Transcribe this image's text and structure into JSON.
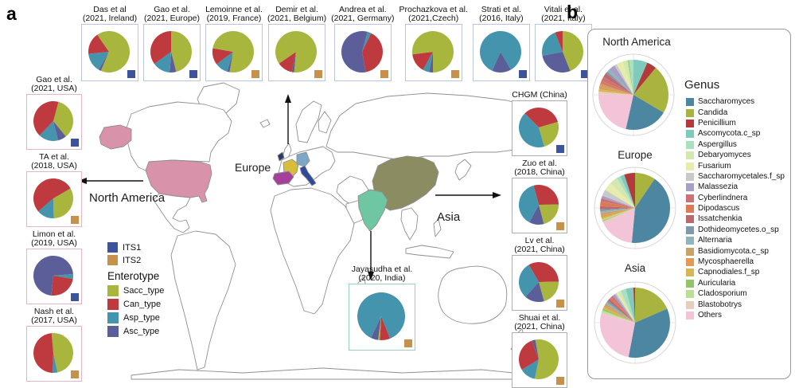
{
  "panels": {
    "a": "a",
    "b": "b"
  },
  "map": {
    "labels": {
      "europe": "Europe",
      "north_america": "North America",
      "asia": "Asia"
    },
    "outline_color": "#8f8f8f",
    "country_colors": {
      "usa": "#d893ab",
      "alaska": "#d893ab",
      "ireland": "#2b3a66",
      "france": "#d8bd3a",
      "germany": "#7da7c4",
      "spain": "#a4409c",
      "italy": "#2e4a9a",
      "china": "#8c8c62",
      "india": "#6ec6a3"
    }
  },
  "its_legend": {
    "its1_label": "ITS1",
    "its1_color": "#3d549c",
    "its2_label": "ITS2",
    "its2_color": "#c8914b"
  },
  "enterotype_legend": {
    "title": "Enterotype",
    "items": [
      {
        "label": "Sacc_type",
        "color": "#a9b63e"
      },
      {
        "label": "Can_type",
        "color": "#bf3a3e"
      },
      {
        "label": "Asp_type",
        "color": "#4494ae"
      },
      {
        "label": "Asc_type",
        "color": "#5b5e99"
      }
    ]
  },
  "box_border_colors": {
    "top": "#b9c6de",
    "left": "#e2b6c5",
    "right": "#aeaeae",
    "india": "#98d0bd"
  },
  "chart_data": {
    "type": "pie",
    "enterotype_colors": {
      "Sacc_type": "#a9b63e",
      "Can_type": "#bf3a3e",
      "Asp_type": "#4494ae",
      "Asc_type": "#5b5e99"
    },
    "study_pies": [
      {
        "group": "top",
        "line1": "Das et al",
        "line2": "(2021, Ireland)",
        "marker": "ITS1",
        "rot": 203,
        "slices": [
          {
            "type": "Asc_type",
            "frac": 0.02
          },
          {
            "type": "Asp_type",
            "frac": 0.15
          },
          {
            "type": "Can_type",
            "frac": 0.17
          },
          {
            "type": "Sacc_type",
            "frac": 0.66
          }
        ]
      },
      {
        "group": "top",
        "line1": "Gao et al.",
        "line2": "(2021, Europe)",
        "marker": "ITS1",
        "rot": 0,
        "slices": [
          {
            "type": "Sacc_type",
            "frac": 0.46
          },
          {
            "type": "Asc_type",
            "frac": 0.05
          },
          {
            "type": "Asp_type",
            "frac": 0.14
          },
          {
            "type": "Can_type",
            "frac": 0.35
          }
        ]
      },
      {
        "group": "top",
        "line1": "Lemoinne et al.",
        "line2": "(2019, France)",
        "marker": "ITS2",
        "rot": 190,
        "slices": [
          {
            "type": "Asc_type",
            "frac": 0.02
          },
          {
            "type": "Asp_type",
            "frac": 0.1
          },
          {
            "type": "Can_type",
            "frac": 0.13
          },
          {
            "type": "Sacc_type",
            "frac": 0.75
          }
        ]
      },
      {
        "group": "top",
        "line1": "Demir et al.",
        "line2": "(2021, Belgium)",
        "marker": "ITS2",
        "rot": 185,
        "slices": [
          {
            "type": "Asc_type",
            "frac": 0.02
          },
          {
            "type": "Can_type",
            "frac": 0.12
          },
          {
            "type": "Sacc_type",
            "frac": 0.86
          }
        ]
      },
      {
        "group": "top",
        "line1": "Andrea et al.",
        "line2": "(2021, Germany)",
        "marker": "ITS2",
        "rot": 15,
        "slices": [
          {
            "type": "Asp_type",
            "frac": 0.03
          },
          {
            "type": "Can_type",
            "frac": 0.4
          },
          {
            "type": "Asc_type",
            "frac": 0.57
          }
        ]
      },
      {
        "group": "top",
        "line1": "Prochazkova et al.",
        "line2": "(2021,Czech)",
        "marker": "ITS2",
        "rot": 180,
        "slices": [
          {
            "type": "Asc_type",
            "frac": 0.03
          },
          {
            "type": "Asp_type",
            "frac": 0.05
          },
          {
            "type": "Can_type",
            "frac": 0.15
          },
          {
            "type": "Sacc_type",
            "frac": 0.77
          }
        ]
      },
      {
        "group": "top",
        "line1": "Strati et al.",
        "line2": "(2016, Italy)",
        "marker": "ITS1",
        "rot": 150,
        "slices": [
          {
            "type": "Asc_type",
            "frac": 0.15
          },
          {
            "type": "Asp_type",
            "frac": 0.85
          }
        ]
      },
      {
        "group": "top",
        "line1": "Vitali et al.",
        "line2": "(2021, Italy)",
        "marker": "ITS1",
        "rot": 0,
        "slices": [
          {
            "type": "Sacc_type",
            "frac": 0.44
          },
          {
            "type": "Asc_type",
            "frac": 0.28
          },
          {
            "type": "Asp_type",
            "frac": 0.22
          },
          {
            "type": "Can_type",
            "frac": 0.06
          }
        ]
      },
      {
        "group": "left",
        "line1": "Gao et al.",
        "line2": "(2021, USA)",
        "marker": "ITS1",
        "rot": 15,
        "slices": [
          {
            "type": "Sacc_type",
            "frac": 0.35
          },
          {
            "type": "Asc_type",
            "frac": 0.07
          },
          {
            "type": "Asp_type",
            "frac": 0.16
          },
          {
            "type": "Can_type",
            "frac": 0.42
          }
        ]
      },
      {
        "group": "left",
        "line1": "TA et al.",
        "line2": "(2018, USA)",
        "marker": "ITS2",
        "rot": 60,
        "slices": [
          {
            "type": "Sacc_type",
            "frac": 0.33
          },
          {
            "type": "Asp_type",
            "frac": 0.14
          },
          {
            "type": "Can_type",
            "frac": 0.53
          }
        ]
      },
      {
        "group": "left",
        "line1": "Limon et al.",
        "line2": "(2019, USA)",
        "marker": "ITS1",
        "rot": 85,
        "slices": [
          {
            "type": "Asp_type",
            "frac": 0.04
          },
          {
            "type": "Can_type",
            "frac": 0.24
          },
          {
            "type": "Asc_type",
            "frac": 0.72
          }
        ]
      },
      {
        "group": "left",
        "line1": "Nash et al.",
        "line2": "(2017, USA)",
        "marker": "ITS2",
        "rot": 355,
        "slices": [
          {
            "type": "Sacc_type",
            "frac": 0.48
          },
          {
            "type": "Asp_type",
            "frac": 0.04
          },
          {
            "type": "Can_type",
            "frac": 0.48
          }
        ]
      },
      {
        "group": "right",
        "line1": "CHGM (China)",
        "line2": "",
        "marker": "ITS1",
        "rot": 315,
        "slices": [
          {
            "type": "Can_type",
            "frac": 0.33
          },
          {
            "type": "Sacc_type",
            "frac": 0.25
          },
          {
            "type": "Asp_type",
            "frac": 0.42
          }
        ]
      },
      {
        "group": "right",
        "line1": "Zuo et al.",
        "line2": "(2018, China)",
        "marker": "ITS2",
        "rot": 345,
        "slices": [
          {
            "type": "Can_type",
            "frac": 0.29
          },
          {
            "type": "Sacc_type",
            "frac": 0.21
          },
          {
            "type": "Asc_type",
            "frac": 0.12
          },
          {
            "type": "Asp_type",
            "frac": 0.38
          }
        ]
      },
      {
        "group": "right",
        "line1": "Lv et al.",
        "line2": "(2021, China)",
        "marker": "ITS2",
        "rot": 330,
        "slices": [
          {
            "type": "Can_type",
            "frac": 0.33
          },
          {
            "type": "Sacc_type",
            "frac": 0.21
          },
          {
            "type": "Asc_type",
            "frac": 0.16
          },
          {
            "type": "Asp_type",
            "frac": 0.3
          }
        ]
      },
      {
        "group": "right",
        "line1": "Shuai et al.",
        "line2": "(2021, China)",
        "marker": "ITS2",
        "rot": 350,
        "slices": [
          {
            "type": "Sacc_type",
            "frac": 0.56
          },
          {
            "type": "Asp_type",
            "frac": 0.13
          },
          {
            "type": "Can_type",
            "frac": 0.28
          },
          {
            "type": "Asc_type",
            "frac": 0.03
          }
        ]
      },
      {
        "group": "india",
        "line1": "Jayasudha et al.",
        "line2": "(2020, India)",
        "marker": "ITS2",
        "rot": 158,
        "slices": [
          {
            "type": "Can_type",
            "frac": 0.07
          },
          {
            "type": "Sacc_type",
            "frac": 0.012
          },
          {
            "type": "Asc_type",
            "frac": 0.05
          },
          {
            "type": "Asp_type",
            "frac": 0.868
          }
        ]
      }
    ],
    "genus_legend": {
      "title": "Genus",
      "items": [
        {
          "name": "Saccharomyces",
          "color": "#4d86a0"
        },
        {
          "name": "Candida",
          "color": "#a9b440"
        },
        {
          "name": "Penicillium",
          "color": "#b23a3d"
        },
        {
          "name": "Ascomycota.c_sp",
          "color": "#7fcabb"
        },
        {
          "name": "Aspergillus",
          "color": "#abdfc2"
        },
        {
          "name": "Debaryomyces",
          "color": "#d3e8b0"
        },
        {
          "name": "Fusarium",
          "color": "#e7ecad"
        },
        {
          "name": "Saccharomycetales.f_sp",
          "color": "#c9c9c9"
        },
        {
          "name": "Malassezia",
          "color": "#a79fc6"
        },
        {
          "name": "Cyberlindnera",
          "color": "#cb7277"
        },
        {
          "name": "Dipodascus",
          "color": "#dc7a57"
        },
        {
          "name": "Issatchenkia",
          "color": "#b96a6e"
        },
        {
          "name": "Dothideomycetes.o_sp",
          "color": "#7e99ab"
        },
        {
          "name": "Alternaria",
          "color": "#8fb4b9"
        },
        {
          "name": "Basidiomycota.c_sp",
          "color": "#c5a36b"
        },
        {
          "name": "Mycosphaerella",
          "color": "#e29a54"
        },
        {
          "name": "Capnodiales.f_sp",
          "color": "#d6b753"
        },
        {
          "name": "Auricularia",
          "color": "#94c368"
        },
        {
          "name": "Cladosporium",
          "color": "#badf94"
        },
        {
          "name": "Blastobotrys",
          "color": "#e7cdbb"
        },
        {
          "name": "Others",
          "color": "#f3c3d8"
        }
      ]
    },
    "region_pies": [
      {
        "title": "North America",
        "slices": [
          {
            "genus": "Ascomycota.c_sp",
            "frac": 0.065
          },
          {
            "genus": "Penicillium",
            "frac": 0.045
          },
          {
            "genus": "Candida",
            "frac": 0.225
          },
          {
            "genus": "Saccharomyces",
            "frac": 0.2
          },
          {
            "genus": "Others",
            "frac": 0.218
          },
          {
            "genus": "Blastobotrys",
            "frac": 0.012
          },
          {
            "genus": "Capnodiales.f_sp",
            "frac": 0.012
          },
          {
            "genus": "Mycosphaerella",
            "frac": 0.012
          },
          {
            "genus": "Basidiomycota.c_sp",
            "frac": 0.012
          },
          {
            "genus": "Dipodascus",
            "frac": 0.015
          },
          {
            "genus": "Cyberlindnera",
            "frac": 0.02
          },
          {
            "genus": "Issatchenkia",
            "frac": 0.02
          },
          {
            "genus": "Dothideomycetes.o_sp",
            "frac": 0.01
          },
          {
            "genus": "Alternaria",
            "frac": 0.012
          },
          {
            "genus": "Malassezia",
            "frac": 0.03
          },
          {
            "genus": "Saccharomycetales.f_sp",
            "frac": 0.012
          },
          {
            "genus": "Fusarium",
            "frac": 0.03
          },
          {
            "genus": "Debaryomyces",
            "frac": 0.02
          },
          {
            "genus": "Cladosporium",
            "frac": 0.005
          },
          {
            "genus": "Auricularia",
            "frac": 0.005
          },
          {
            "genus": "Aspergillus",
            "frac": 0.02
          }
        ]
      },
      {
        "title": "Europe",
        "slices": [
          {
            "genus": "Candida",
            "frac": 0.095
          },
          {
            "genus": "Saccharomyces",
            "frac": 0.42
          },
          {
            "genus": "Others",
            "frac": 0.16
          },
          {
            "genus": "Blastobotrys",
            "frac": 0.012
          },
          {
            "genus": "Auricularia",
            "frac": 0.004
          },
          {
            "genus": "Cladosporium",
            "frac": 0.006
          },
          {
            "genus": "Capnodiales.f_sp",
            "frac": 0.008
          },
          {
            "genus": "Mycosphaerella",
            "frac": 0.01
          },
          {
            "genus": "Basidiomycota.c_sp",
            "frac": 0.012
          },
          {
            "genus": "Alternaria",
            "frac": 0.008
          },
          {
            "genus": "Dothideomycetes.o_sp",
            "frac": 0.008
          },
          {
            "genus": "Issatchenkia",
            "frac": 0.015
          },
          {
            "genus": "Dipodascus",
            "frac": 0.022
          },
          {
            "genus": "Cyberlindnera",
            "frac": 0.015
          },
          {
            "genus": "Malassezia",
            "frac": 0.012
          },
          {
            "genus": "Saccharomycetales.f_sp",
            "frac": 0.03
          },
          {
            "genus": "Fusarium",
            "frac": 0.04
          },
          {
            "genus": "Debaryomyces",
            "frac": 0.035
          },
          {
            "genus": "Aspergillus",
            "frac": 0.018
          },
          {
            "genus": "Ascomycota.c_sp",
            "frac": 0.02
          },
          {
            "genus": "Penicillium",
            "frac": 0.05
          }
        ]
      },
      {
        "title": "Asia",
        "slices": [
          {
            "genus": "Candida",
            "frac": 0.185
          },
          {
            "genus": "Saccharomyces",
            "frac": 0.345
          },
          {
            "genus": "Others",
            "frac": 0.26
          },
          {
            "genus": "Blastobotrys",
            "frac": 0.008
          },
          {
            "genus": "Cladosporium",
            "frac": 0.01
          },
          {
            "genus": "Auricularia",
            "frac": 0.008
          },
          {
            "genus": "Capnodiales.f_sp",
            "frac": 0.008
          },
          {
            "genus": "Mycosphaerella",
            "frac": 0.008
          },
          {
            "genus": "Basidiomycota.c_sp",
            "frac": 0.01
          },
          {
            "genus": "Alternaria",
            "frac": 0.008
          },
          {
            "genus": "Dothideomycetes.o_sp",
            "frac": 0.008
          },
          {
            "genus": "Issatchenkia",
            "frac": 0.012
          },
          {
            "genus": "Dipodascus",
            "frac": 0.01
          },
          {
            "genus": "Cyberlindnera",
            "frac": 0.01
          },
          {
            "genus": "Malassezia",
            "frac": 0.012
          },
          {
            "genus": "Saccharomycetales.f_sp",
            "frac": 0.008
          },
          {
            "genus": "Fusarium",
            "frac": 0.01
          },
          {
            "genus": "Debaryomyces",
            "frac": 0.012
          },
          {
            "genus": "Aspergillus",
            "frac": 0.025
          },
          {
            "genus": "Ascomycota.c_sp",
            "frac": 0.035
          },
          {
            "genus": "Penicillium",
            "frac": 0.008
          }
        ]
      }
    ]
  }
}
